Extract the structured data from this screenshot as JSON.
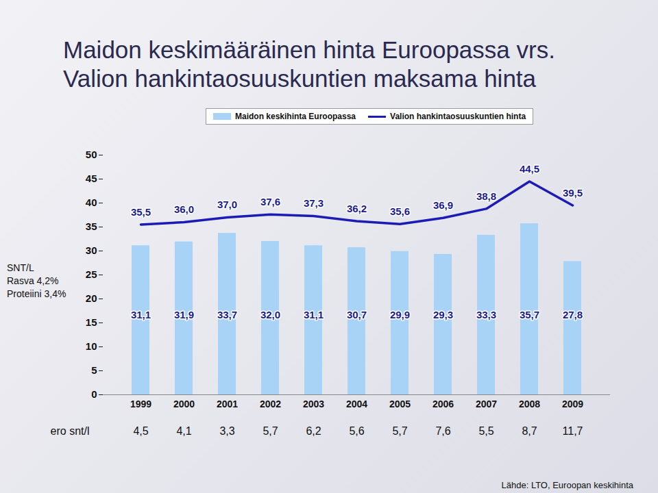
{
  "chart_data": {
    "type": "bar",
    "title": "Maidon keskimääräinen hinta Euroopassa vrs. Valion hankintaosuuskuntien maksama hinta",
    "categories": [
      "1999",
      "2000",
      "2001",
      "2002",
      "2003",
      "2004",
      "2005",
      "2006",
      "2007",
      "2008",
      "2009"
    ],
    "series": [
      {
        "name": "Maidon keskihinta Euroopassa",
        "type": "bar",
        "color": "#a9d2f7",
        "values": [
          31.1,
          31.9,
          33.7,
          32.0,
          31.1,
          30.7,
          29.9,
          29.3,
          33.3,
          35.7,
          27.8
        ],
        "value_labels": [
          "31,1",
          "31,9",
          "33,7",
          "32,0",
          "31,1",
          "30,7",
          "29,9",
          "29,3",
          "33,3",
          "35,7",
          "27,8"
        ]
      },
      {
        "name": "Valion hankintaosuuskuntien hinta",
        "type": "line",
        "color": "#1c1cb4",
        "values": [
          35.5,
          36.0,
          37.0,
          37.6,
          37.3,
          36.2,
          35.6,
          36.9,
          38.8,
          44.5,
          39.5
        ],
        "value_labels": [
          "35,5",
          "36,0",
          "37,0",
          "37,6",
          "37,3",
          "36,2",
          "35,6",
          "36,9",
          "38,8",
          "44,5",
          "39,5"
        ]
      }
    ],
    "ylim": [
      0,
      50
    ],
    "yticks": [
      0,
      5,
      10,
      15,
      20,
      25,
      30,
      35,
      40,
      45,
      50
    ],
    "grid": false,
    "data_labels": true,
    "legend": "top",
    "annotations": [
      "SNT/L",
      "Rasva 4,2%",
      "Proteiini 3,4%"
    ],
    "differences": {
      "label": "ero snt/l",
      "values": [
        4.5,
        4.1,
        3.3,
        5.7,
        6.2,
        5.6,
        5.7,
        7.6,
        5.5,
        8.7,
        11.7
      ],
      "value_labels": [
        "4,5",
        "4,1",
        "3,3",
        "5,7",
        "6,2",
        "5,6",
        "5,7",
        "7,6",
        "5,5",
        "8,7",
        "11,7"
      ]
    },
    "source": "Lähde: LTO, Euroopan keskihinta"
  }
}
